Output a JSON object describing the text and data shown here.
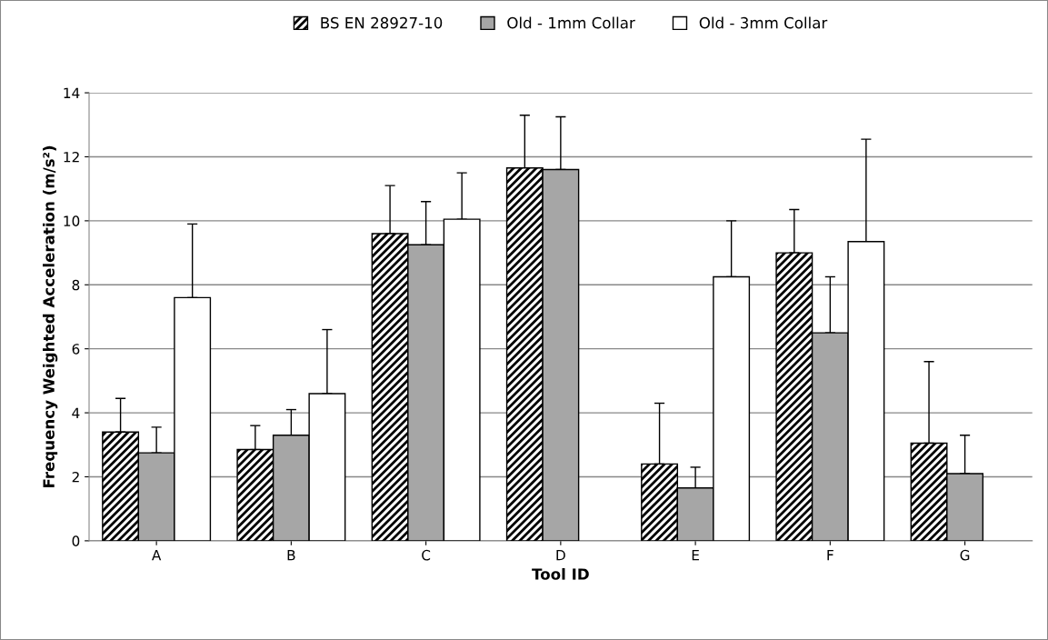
{
  "chart_data": {
    "type": "bar",
    "xlabel": "Tool ID",
    "ylabel": "Frequency Weighted Acceleration (m/s²)",
    "categories": [
      "A",
      "B",
      "C",
      "D",
      "E",
      "F",
      "G"
    ],
    "series": [
      {
        "name": "BS EN 28927-10",
        "color": "#000000",
        "values": [
          3.4,
          2.85,
          9.6,
          11.65,
          2.4,
          9.0,
          3.05
        ],
        "errors": [
          [
            3.4,
            4.45
          ],
          [
            2.85,
            3.6
          ],
          [
            9.6,
            11.1
          ],
          [
            11.65,
            13.3
          ],
          [
            2.4,
            4.3
          ],
          [
            9.0,
            10.35
          ],
          [
            3.05,
            5.6
          ]
        ]
      },
      {
        "name": "Old - 1mm Collar",
        "color": "#a6a6a6",
        "values": [
          2.75,
          3.3,
          9.25,
          11.6,
          1.65,
          6.5,
          2.1
        ],
        "errors": [
          [
            2.75,
            3.55
          ],
          [
            3.3,
            4.1
          ],
          [
            9.25,
            10.6
          ],
          [
            11.6,
            13.25
          ],
          [
            1.65,
            2.3
          ],
          [
            6.5,
            8.25
          ],
          [
            2.1,
            3.3
          ]
        ]
      },
      {
        "name": "Old - 3mm Collar",
        "color": "#ffffff",
        "values": [
          7.6,
          4.6,
          10.05,
          null,
          8.25,
          9.35,
          null
        ],
        "errors": [
          [
            7.6,
            9.9
          ],
          [
            4.6,
            6.6
          ],
          [
            10.05,
            11.5
          ],
          null,
          [
            8.25,
            10.0
          ],
          [
            9.35,
            12.55
          ],
          null
        ]
      }
    ],
    "ylim": [
      0,
      14
    ],
    "yticks": [
      0,
      2,
      4,
      6,
      8,
      10,
      12,
      14
    ],
    "grid": "y",
    "legend": "top"
  }
}
